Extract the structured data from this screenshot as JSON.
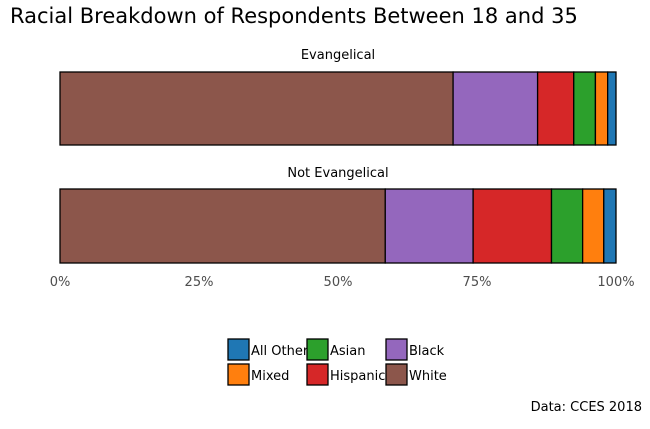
{
  "chart_data": {
    "type": "bar",
    "orientation": "horizontal",
    "stacked": true,
    "title": "Racial Breakdown of Respondents Between 18 and 35",
    "caption": "Data: CCES 2018",
    "xlim": [
      0,
      1
    ],
    "x_ticks": [
      "0%",
      "25%",
      "50%",
      "75%",
      "100%"
    ],
    "x_tick_values": [
      0,
      0.25,
      0.5,
      0.75,
      1.0
    ],
    "grid": false,
    "legend_placement": "bottom",
    "panels": [
      {
        "label": "Evangelical",
        "segments": [
          {
            "category": "White",
            "value": 0.707
          },
          {
            "category": "Black",
            "value": 0.152
          },
          {
            "category": "Hispanic",
            "value": 0.065
          },
          {
            "category": "Asian",
            "value": 0.039
          },
          {
            "category": "Mixed",
            "value": 0.022
          },
          {
            "category": "All Other",
            "value": 0.015
          }
        ]
      },
      {
        "label": "Not Evangelical",
        "segments": [
          {
            "category": "White",
            "value": 0.585
          },
          {
            "category": "Black",
            "value": 0.158
          },
          {
            "category": "Hispanic",
            "value": 0.141
          },
          {
            "category": "Asian",
            "value": 0.056
          },
          {
            "category": "Mixed",
            "value": 0.038
          },
          {
            "category": "All Other",
            "value": 0.022
          }
        ]
      }
    ],
    "legend": [
      {
        "label": "All Other",
        "color": "#1f77b4"
      },
      {
        "label": "Asian",
        "color": "#2ca02c"
      },
      {
        "label": "Black",
        "color": "#9467bd"
      },
      {
        "label": "Mixed",
        "color": "#ff7f0e"
      },
      {
        "label": "Hispanic",
        "color": "#d62728"
      },
      {
        "label": "White",
        "color": "#8c564b"
      }
    ],
    "colors": {
      "White": "#8c564b",
      "Black": "#9467bd",
      "Hispanic": "#d62728",
      "Asian": "#2ca02c",
      "Mixed": "#ff7f0e",
      "All Other": "#1f77b4"
    }
  }
}
